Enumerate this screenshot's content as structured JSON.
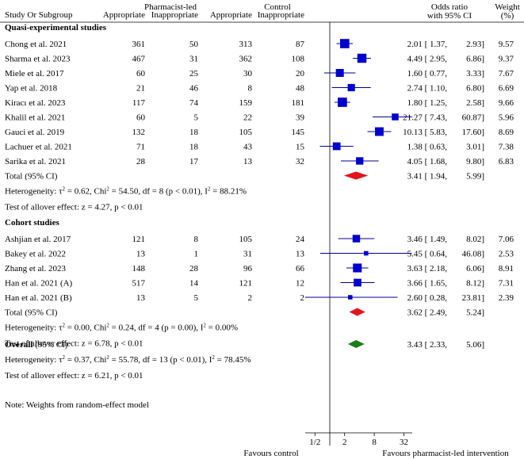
{
  "chart_data": {
    "type": "forest",
    "title": "",
    "scale": "log2",
    "x_ticks": [
      {
        "label": "1/2",
        "value": 0.5
      },
      {
        "label": "2",
        "value": 2
      },
      {
        "label": "8",
        "value": 8
      },
      {
        "label": "32",
        "value": 32
      }
    ],
    "x_label_left": "Favours control",
    "x_label_right": "Favours pharmacist-led intervention",
    "columns": {
      "study": "Study Or Subgroup",
      "group1": "Pharmacist-led",
      "group2": "Control",
      "appropriate": "Appropriate",
      "inappropriate": "Inappropriate",
      "or_line1": "Odds ratio",
      "or_line2": "with 95% CI",
      "weight_line1": "Weight",
      "weight_line2": "(%)"
    },
    "groups": [
      {
        "title": "Quasi-experimental studies",
        "studies": [
          {
            "name": "Chong et al. 2021",
            "p_app": "361",
            "p_inapp": "50",
            "c_app": "313",
            "c_inapp": "87",
            "or": 2.01,
            "lo": 1.37,
            "hi": 2.93,
            "or_text": "2.01 [ 1.37,",
            "hi_text": "2.93]",
            "weight": "9.57"
          },
          {
            "name": "Sharma et al. 2023",
            "p_app": "467",
            "p_inapp": "31",
            "c_app": "362",
            "c_inapp": "108",
            "or": 4.49,
            "lo": 2.95,
            "hi": 6.86,
            "or_text": "4.49 [ 2.95,",
            "hi_text": "6.86]",
            "weight": "9.37"
          },
          {
            "name": "Miele et al. 2017",
            "p_app": "60",
            "p_inapp": "25",
            "c_app": "30",
            "c_inapp": "20",
            "or": 1.6,
            "lo": 0.77,
            "hi": 3.33,
            "or_text": "1.60 [ 0.77,",
            "hi_text": "3.33]",
            "weight": "7.67"
          },
          {
            "name": "Yap et al. 2018",
            "p_app": "21",
            "p_inapp": "46",
            "c_app": "8",
            "c_inapp": "48",
            "or": 2.74,
            "lo": 1.1,
            "hi": 6.8,
            "or_text": "2.74 [ 1.10,",
            "hi_text": "6.80]",
            "weight": "6.69"
          },
          {
            "name": "Kiracı et al. 2023",
            "p_app": "117",
            "p_inapp": "74",
            "c_app": "159",
            "c_inapp": "181",
            "or": 1.8,
            "lo": 1.25,
            "hi": 2.58,
            "or_text": "1.80 [ 1.25,",
            "hi_text": "2.58]",
            "weight": "9.66"
          },
          {
            "name": "Khalil et al. 2021",
            "p_app": "60",
            "p_inapp": "5",
            "c_app": "22",
            "c_inapp": "39",
            "or": 21.27,
            "lo": 7.43,
            "hi": 60.87,
            "or_text": "21.27 [ 7.43,",
            "hi_text": "60.87]",
            "weight": "5.96"
          },
          {
            "name": "Gauci et al. 2019",
            "p_app": "132",
            "p_inapp": "18",
            "c_app": "105",
            "c_inapp": "145",
            "or": 10.13,
            "lo": 5.83,
            "hi": 17.6,
            "or_text": "10.13 [ 5.83,",
            "hi_text": "17.60]",
            "weight": "8.69"
          },
          {
            "name": "Lachuer et al. 2021",
            "p_app": "71",
            "p_inapp": "18",
            "c_app": "43",
            "c_inapp": "15",
            "or": 1.38,
            "lo": 0.63,
            "hi": 3.01,
            "or_text": "1.38 [ 0.63,",
            "hi_text": "3.01]",
            "weight": "7.38"
          },
          {
            "name": "Sarika et al. 2021",
            "p_app": "28",
            "p_inapp": "17",
            "c_app": "13",
            "c_inapp": "32",
            "or": 4.05,
            "lo": 1.68,
            "hi": 9.8,
            "or_text": "4.05 [ 1.68,",
            "hi_text": "9.80]",
            "weight": "6.83"
          }
        ],
        "total": {
          "label": "Total (95% CI)",
          "or": 3.41,
          "lo": 1.94,
          "hi": 5.99,
          "or_text": "3.41 [ 1.94,",
          "hi_text": "5.99]"
        },
        "heterogeneity": {
          "prefix": "Heterogeneity: τ",
          "sup1": "2",
          "mid": " = 0.62, Chi",
          "sup2": "2",
          "mid2": " = 54.50, df = 8 (p < 0.01), I",
          "sup3": "2",
          "end": " = 88.21%"
        },
        "overall_test": "Test of allover effect: z = 4.27, p < 0.01"
      },
      {
        "title": "Cohort studies",
        "studies": [
          {
            "name": "Ashjian et al. 2017",
            "p_app": "121",
            "p_inapp": "8",
            "c_app": "105",
            "c_inapp": "24",
            "or": 3.46,
            "lo": 1.49,
            "hi": 8.02,
            "or_text": "3.46 [ 1.49,",
            "hi_text": "8.02]",
            "weight": "7.06"
          },
          {
            "name": "Bakey et al. 2022",
            "p_app": "13",
            "p_inapp": "1",
            "c_app": "31",
            "c_inapp": "13",
            "or": 5.45,
            "lo": 0.64,
            "hi": 46.08,
            "or_text": "5.45 [ 0.64,",
            "hi_text": "46.08]",
            "weight": "2.53"
          },
          {
            "name": "Zhang et al. 2023",
            "p_app": "148",
            "p_inapp": "28",
            "c_app": "96",
            "c_inapp": "66",
            "or": 3.63,
            "lo": 2.18,
            "hi": 6.06,
            "or_text": "3.63 [ 2.18,",
            "hi_text": "6.06]",
            "weight": "8.91"
          },
          {
            "name": "Han et al. 2021 (A)",
            "p_app": "517",
            "p_inapp": "14",
            "c_app": "121",
            "c_inapp": "12",
            "or": 3.66,
            "lo": 1.65,
            "hi": 8.12,
            "or_text": "3.66 [ 1.65,",
            "hi_text": "8.12]",
            "weight": "7.31"
          },
          {
            "name": "Han et al. 2021 (B)",
            "p_app": "13",
            "p_inapp": "5",
            "c_app": "2",
            "c_inapp": "2",
            "or": 2.6,
            "lo": 0.28,
            "hi": 23.81,
            "or_text": "2.60 [ 0.28,",
            "hi_text": "23.81]",
            "weight": "2.39"
          }
        ],
        "total": {
          "label": "Total (95% CI)",
          "or": 3.62,
          "lo": 2.49,
          "hi": 5.24,
          "or_text": "3.62 [ 2.49,",
          "hi_text": "5.24]"
        },
        "heterogeneity": {
          "prefix": "Heterogeneity: τ",
          "sup1": "2",
          "mid": " = 0.00, Chi",
          "sup2": "2",
          "mid2": " = 0.24, df = 4 (p = 0.00), I",
          "sup3": "2",
          "end": " = 0.00%"
        },
        "overall_test": "Test of allover effect: z = 6.78, p < 0.01"
      }
    ],
    "overall": {
      "label_bold": "Overall",
      "label_rest": " (95% CI)",
      "or": 3.43,
      "lo": 2.33,
      "hi": 5.06,
      "or_text": "3.43 [ 2.33,",
      "hi_text": "5.06]",
      "heterogeneity": {
        "prefix": "Heterogeneity: τ",
        "sup1": "2",
        "mid": " = 0.37, Chi",
        "sup2": "2",
        "mid2": " = 55.78, df = 13 (p < 0.01), I",
        "sup3": "2",
        "end": " = 78.45%"
      },
      "overall_test": "Test of allover effect: z = 6.21, p < 0.01"
    },
    "note": "Note: Weights from random-effect model",
    "colors": {
      "square": "#0000cc",
      "ci_line": "#00008b",
      "subtotal_diamond": "#e3141b",
      "overall_diamond": "#1e7b1e",
      "axis": "#000000"
    }
  }
}
